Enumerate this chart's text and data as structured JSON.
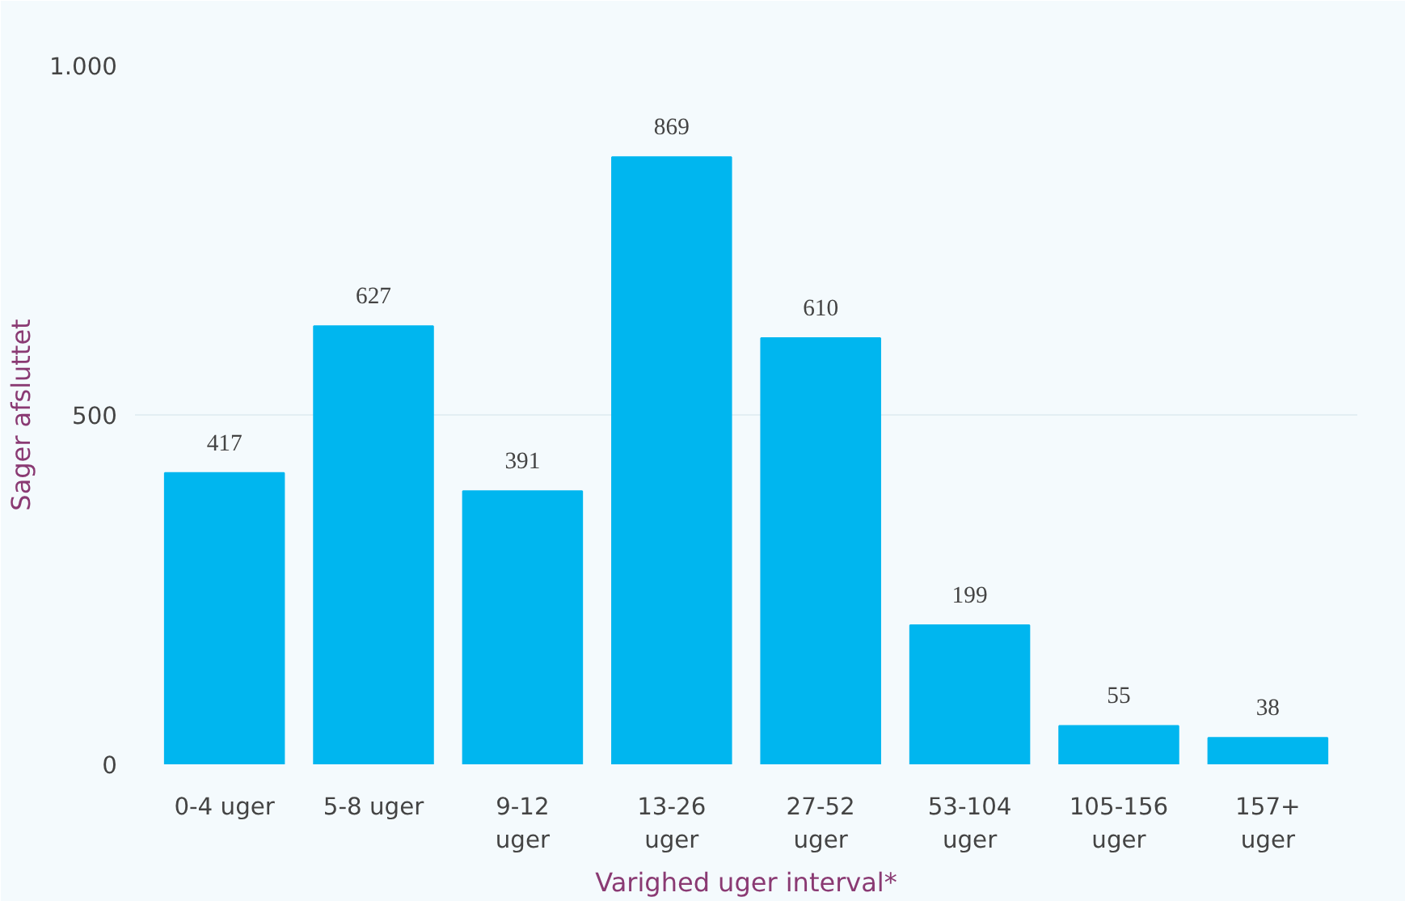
{
  "chart_data": {
    "type": "bar",
    "xlabel": "Varighed uger interval*",
    "ylabel": "Sager afsluttet",
    "categories": [
      "0-4 uger",
      "5-8 uger",
      "9-12 uger",
      "13-26 uger",
      "27-52 uger",
      "53-104 uger",
      "105-156 uger",
      "157+ uger"
    ],
    "values": [
      417,
      627,
      391,
      869,
      610,
      199,
      55,
      38
    ],
    "color": "#00b6ef",
    "data_labels": true,
    "ylim": [
      0,
      1000
    ],
    "yticks": [
      0,
      500,
      {
        "value": 1000,
        "label": "1.000"
      }
    ],
    "grid": "y"
  }
}
